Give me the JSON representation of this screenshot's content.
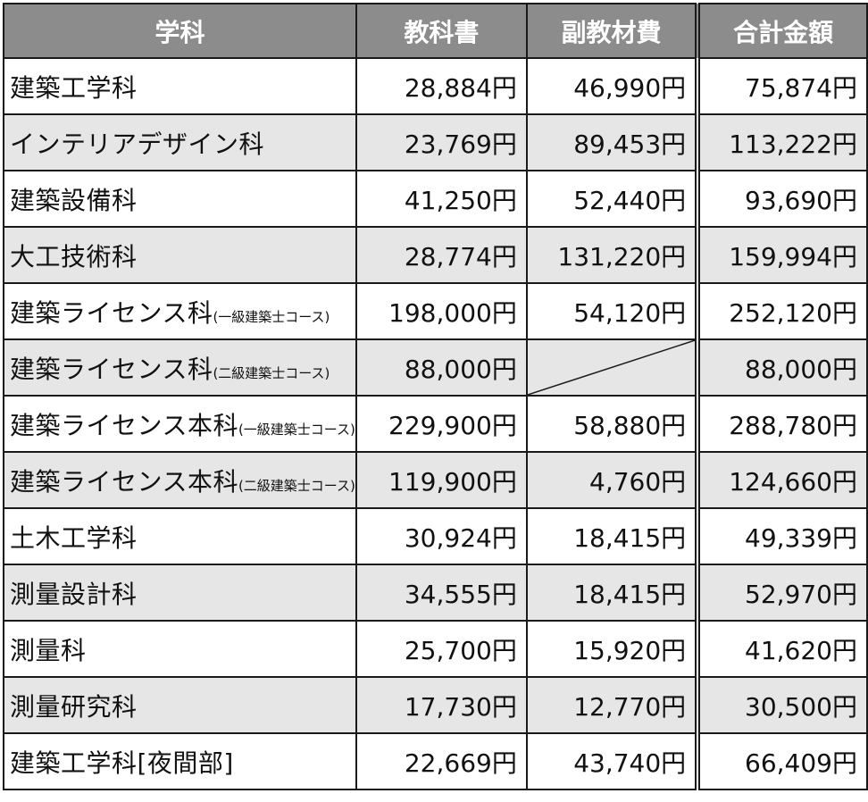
{
  "headers": {
    "department": "学科",
    "textbook": "教科書",
    "supplementary": "副教材費",
    "total": "合計金額"
  },
  "rows": [
    {
      "name": "建築工学科",
      "note": "",
      "textbook": "28,884円",
      "supplementary": "46,990円",
      "total": "75,874円"
    },
    {
      "name": "インテリアデザイン科",
      "note": "",
      "textbook": "23,769円",
      "supplementary": "89,453円",
      "total": "113,222円"
    },
    {
      "name": "建築設備科",
      "note": "",
      "textbook": "41,250円",
      "supplementary": "52,440円",
      "total": "93,690円"
    },
    {
      "name": "大工技術科",
      "note": "",
      "textbook": "28,774円",
      "supplementary": "131,220円",
      "total": "159,994円"
    },
    {
      "name": "建築ライセンス科",
      "note": "(一級建築士コース)",
      "textbook": "198,000円",
      "supplementary": "54,120円",
      "total": "252,120円"
    },
    {
      "name": "建築ライセンス科",
      "note": "(二級建築士コース)",
      "textbook": "88,000円",
      "supplementary": "",
      "total": "88,000円"
    },
    {
      "name": "建築ライセンス本科",
      "note": "(一級建築士コース)",
      "textbook": "229,900円",
      "supplementary": "58,880円",
      "total": "288,780円"
    },
    {
      "name": "建築ライセンス本科",
      "note": "(二級建築士コース)",
      "textbook": "119,900円",
      "supplementary": "4,760円",
      "total": "124,660円"
    },
    {
      "name": "土木工学科",
      "note": "",
      "textbook": "30,924円",
      "supplementary": "18,415円",
      "total": "49,339円"
    },
    {
      "name": "測量設計科",
      "note": "",
      "textbook": "34,555円",
      "supplementary": "18,415円",
      "total": "52,970円"
    },
    {
      "name": "測量科",
      "note": "",
      "textbook": "25,700円",
      "supplementary": "15,920円",
      "total": "41,620円"
    },
    {
      "name": "測量研究科",
      "note": "",
      "textbook": "17,730円",
      "supplementary": "12,770円",
      "total": "30,500円"
    },
    {
      "name": "建築工学科[夜間部]",
      "note": "",
      "textbook": "22,669円",
      "supplementary": "43,740円",
      "total": "66,409円"
    }
  ]
}
